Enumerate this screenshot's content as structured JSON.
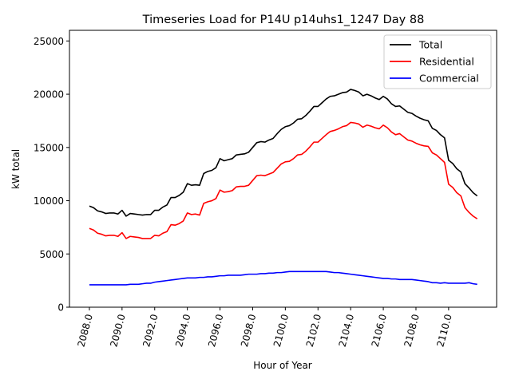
{
  "chart_data": {
    "type": "line",
    "title": "Timeseries Load for P14U p14uhs1_1247  Day 88",
    "xlabel": "Hour of Year",
    "ylabel": "kW total",
    "xlim": [
      2086.78,
      2112.94
    ],
    "ylim": [
      0,
      26000
    ],
    "xticks": [
      2088,
      2090,
      2092,
      2094,
      2096,
      2098,
      2100,
      2102,
      2104,
      2106,
      2108,
      2110
    ],
    "xtick_labels": [
      "2088.0",
      "2090.0",
      "2092.0",
      "2094.0",
      "2096.0",
      "2098.0",
      "2100.0",
      "2102.0",
      "2104.0",
      "2106.0",
      "2108.0",
      "2110.0"
    ],
    "yticks": [
      0,
      5000,
      10000,
      15000,
      20000,
      25000
    ],
    "ytick_labels": [
      "0",
      "5000",
      "10000",
      "15000",
      "20000",
      "25000"
    ],
    "grid": false,
    "legend_position": "top-right",
    "x_start": 2088.0,
    "x_step": 0.25,
    "series": [
      {
        "name": "Total",
        "color": "#000000",
        "values": [
          9500,
          9350,
          9050,
          8950,
          8800,
          8850,
          8850,
          8750,
          9100,
          8550,
          8800,
          8750,
          8700,
          8650,
          8700,
          8700,
          9100,
          9100,
          9400,
          9600,
          10300,
          10300,
          10500,
          10800,
          11600,
          11450,
          11500,
          11450,
          12550,
          12750,
          12850,
          13100,
          13950,
          13750,
          13850,
          13950,
          14300,
          14350,
          14400,
          14550,
          15000,
          15450,
          15550,
          15500,
          15700,
          15850,
          16300,
          16700,
          16950,
          17050,
          17300,
          17650,
          17700,
          18000,
          18400,
          18850,
          18850,
          19200,
          19550,
          19800,
          19850,
          20000,
          20150,
          20200,
          20450,
          20350,
          20200,
          19850,
          20000,
          19850,
          19650,
          19500,
          19800,
          19550,
          19100,
          18850,
          18900,
          18600,
          18300,
          18200,
          17950,
          17750,
          17600,
          17500,
          16800,
          16600,
          16200,
          15900,
          13800,
          13500,
          13000,
          12700,
          11600,
          11200,
          10750,
          10450
        ]
      },
      {
        "name": "Residential",
        "color": "#ff0000",
        "values": [
          7400,
          7250,
          6950,
          6850,
          6700,
          6750,
          6750,
          6650,
          7000,
          6450,
          6650,
          6600,
          6550,
          6450,
          6450,
          6450,
          6750,
          6700,
          6950,
          7100,
          7750,
          7700,
          7850,
          8100,
          8850,
          8700,
          8750,
          8650,
          9750,
          9900,
          10000,
          10200,
          11000,
          10800,
          10850,
          10950,
          11300,
          11350,
          11350,
          11450,
          11900,
          12350,
          12400,
          12350,
          12500,
          12650,
          13050,
          13450,
          13650,
          13700,
          13950,
          14300,
          14350,
          14650,
          15050,
          15500,
          15500,
          15850,
          16200,
          16500,
          16600,
          16750,
          16950,
          17050,
          17350,
          17300,
          17200,
          16900,
          17100,
          17000,
          16850,
          16750,
          17100,
          16850,
          16450,
          16200,
          16300,
          16000,
          15700,
          15600,
          15400,
          15250,
          15150,
          15100,
          14500,
          14300,
          13950,
          13600,
          11550,
          11250,
          10750,
          10450,
          9350,
          8900,
          8550,
          8300
        ]
      },
      {
        "name": "Commercial",
        "color": "#0000ff",
        "values": [
          2100,
          2100,
          2100,
          2100,
          2100,
          2100,
          2100,
          2100,
          2100,
          2100,
          2150,
          2150,
          2150,
          2200,
          2250,
          2250,
          2350,
          2400,
          2450,
          2500,
          2550,
          2600,
          2650,
          2700,
          2750,
          2750,
          2750,
          2800,
          2800,
          2850,
          2850,
          2900,
          2950,
          2950,
          3000,
          3000,
          3000,
          3000,
          3050,
          3100,
          3100,
          3100,
          3150,
          3150,
          3200,
          3200,
          3250,
          3250,
          3300,
          3350,
          3350,
          3350,
          3350,
          3350,
          3350,
          3350,
          3350,
          3350,
          3350,
          3300,
          3250,
          3250,
          3200,
          3150,
          3100,
          3050,
          3000,
          2950,
          2900,
          2850,
          2800,
          2750,
          2700,
          2700,
          2650,
          2650,
          2600,
          2600,
          2600,
          2600,
          2550,
          2500,
          2450,
          2400,
          2300,
          2300,
          2250,
          2300,
          2250,
          2250,
          2250,
          2250,
          2250,
          2300,
          2200,
          2150
        ]
      }
    ]
  }
}
